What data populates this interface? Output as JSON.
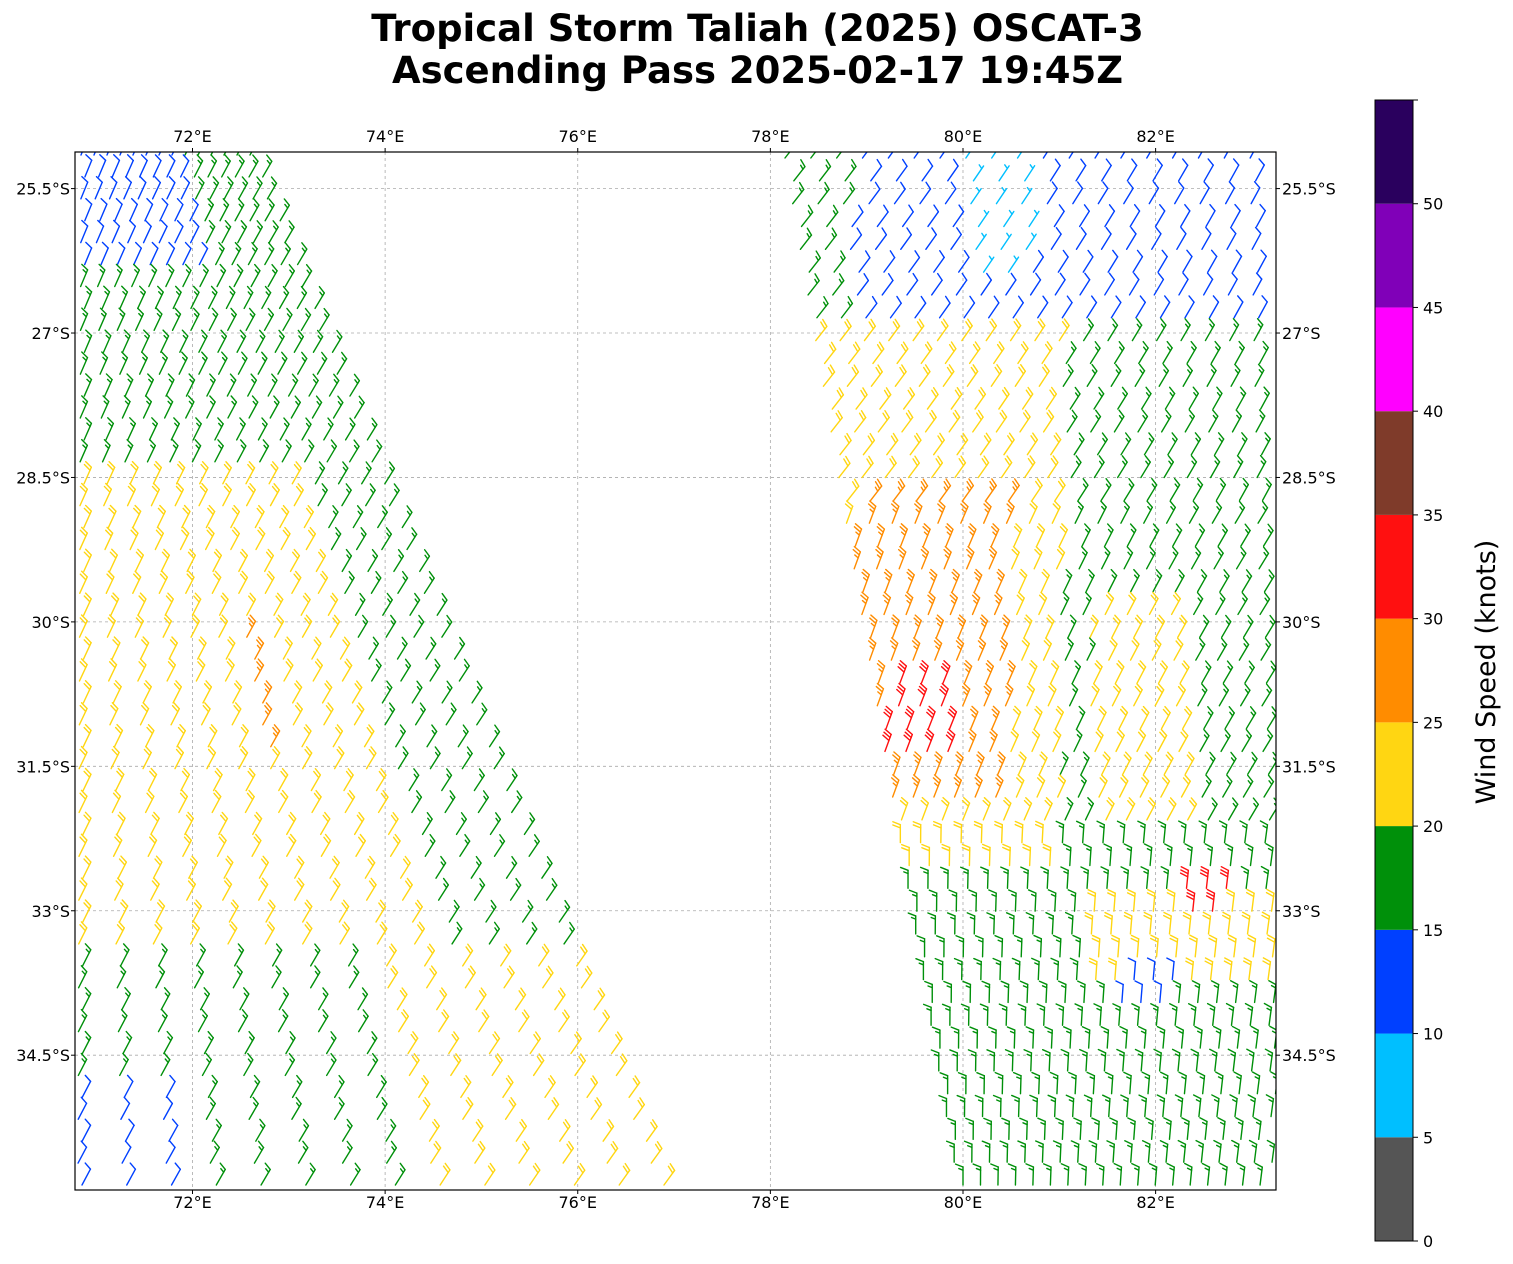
{
  "title": {
    "line1": "Tropical Storm Taliah (2025) OSCAT-3",
    "line2": "Ascending Pass 2025-02-17 19:45Z"
  },
  "map": {
    "lon_labels": [
      "72°E",
      "74°E",
      "76°E",
      "78°E",
      "80°E",
      "82°E"
    ],
    "lat_labels": [
      "25.5°S",
      "27°S",
      "28.5°S",
      "30°S",
      "31.5°S",
      "33°S",
      "34.5°S"
    ],
    "grid": true
  },
  "colorbar": {
    "label": "Wind Speed (knots)",
    "ticks": [
      "0",
      "5",
      "10",
      "15",
      "20",
      "25",
      "30",
      "35",
      "40",
      "45",
      "50"
    ],
    "bins": [
      {
        "min": 0,
        "max": 5,
        "color": "#555555"
      },
      {
        "min": 5,
        "max": 10,
        "color": "#00bfff"
      },
      {
        "min": 10,
        "max": 15,
        "color": "#0040ff"
      },
      {
        "min": 15,
        "max": 20,
        "color": "#00900a"
      },
      {
        "min": 20,
        "max": 25,
        "color": "#ffd612"
      },
      {
        "min": 25,
        "max": 30,
        "color": "#ff8c00"
      },
      {
        "min": 30,
        "max": 35,
        "color": "#ff1010"
      },
      {
        "min": 35,
        "max": 40,
        "color": "#7f3b2a"
      },
      {
        "min": 40,
        "max": 45,
        "color": "#ff00ff"
      },
      {
        "min": 45,
        "max": 50,
        "color": "#8000b8"
      },
      {
        "min": 50,
        "max": 55,
        "color": "#2a005e"
      }
    ]
  },
  "chart_data": {
    "type": "scatter",
    "description_units": "wind barbs, knots",
    "lon_range": [
      70.78,
      83.25
    ],
    "lat_range": [
      -35.9,
      -25.12
    ],
    "swaths": [
      {
        "region": "western swath",
        "speed_zones": [
          {
            "area": "north edge near 71-72.5E, 25-26S",
            "speed_kt": 12
          },
          {
            "area": "north-central",
            "speed_kt": 17
          },
          {
            "area": "central 71.5-74E, 28.5-32.5S",
            "speed_kt": 22
          },
          {
            "area": "core near 72.5-73E, 30.3S",
            "speed_kt": 27
          },
          {
            "area": "south-east 73.5-76.5E, 32-35.5S",
            "speed_kt": 17
          },
          {
            "area": "south-west corner 71.2E, 35S",
            "speed_kt": 12
          }
        ]
      },
      {
        "region": "eastern swath",
        "speed_zones": [
          {
            "area": "north 78-81E, 25-26.5S",
            "speed_kt": 12
          },
          {
            "area": "north-east near 80.5E, 25.3S",
            "speed_kt": 7
          },
          {
            "area": "78.5-80.5E, 26-31.5S",
            "speed_kt": 22
          },
          {
            "area": "core near 79.2-79.8E, 29.5-31S",
            "speed_kt": 27
          },
          {
            "area": "peak near 79.3-79.6E, 30.5S",
            "speed_kt": 32
          },
          {
            "area": "east 81-83E, 27-31S",
            "speed_kt": 17
          },
          {
            "area": "south-east near 82.4E, 32.4S",
            "speed_kt": 32
          },
          {
            "area": "south 79.8-83E, 33-35.8S",
            "speed_kt": 17
          }
        ]
      }
    ]
  }
}
